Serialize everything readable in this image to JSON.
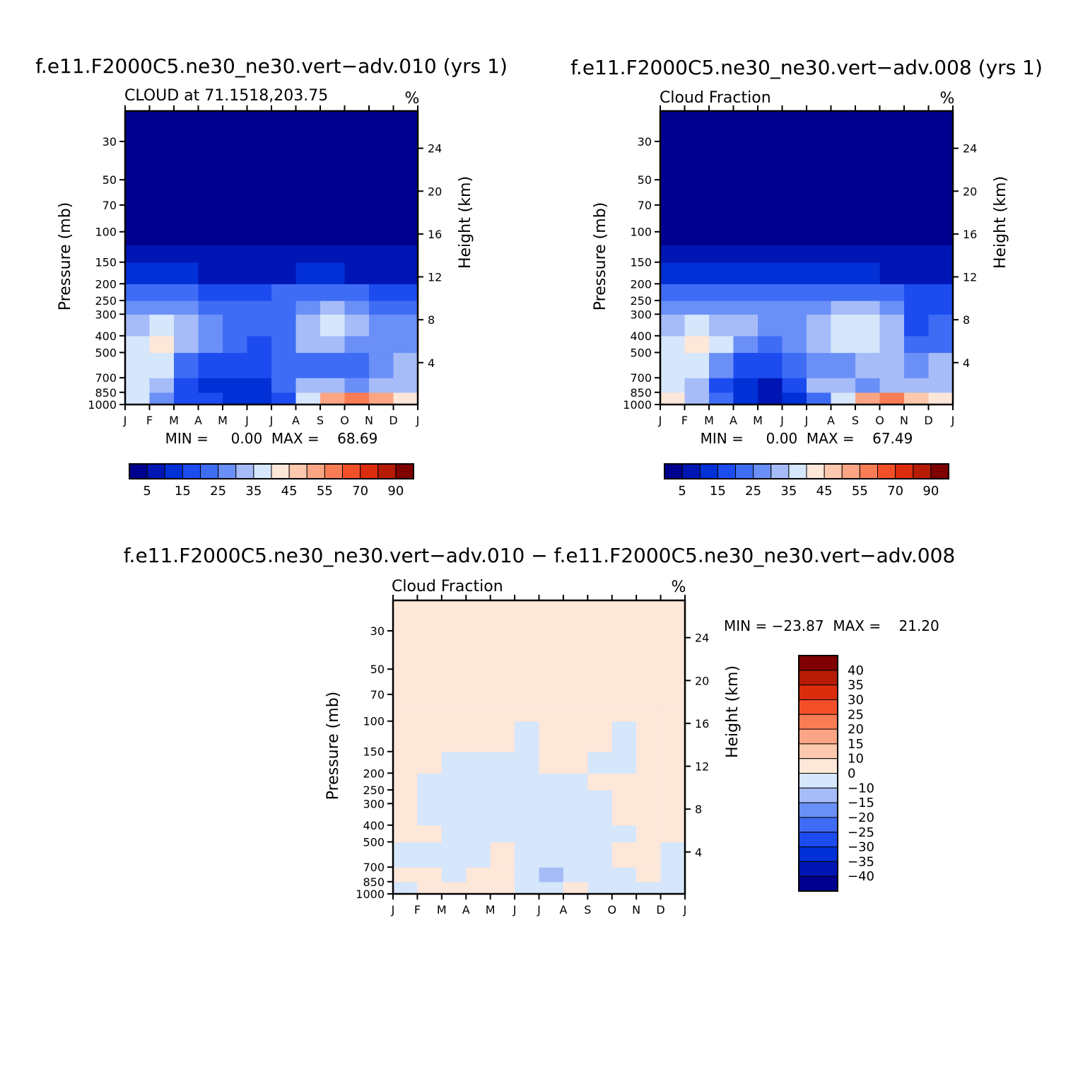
{
  "panels": [
    {
      "id": "p1",
      "title": "f.e11.F2000C5.ne30_ne30.vert−adv.010 (yrs 1)",
      "subtitle_left": "CLOUD at 71.1518,203.75",
      "units": "%",
      "ylabel": "Pressure (mb)",
      "y2label": "Height (km)",
      "stats": "MIN =     0.00  MAX =    68.69",
      "min": 0.0,
      "max": 68.69
    },
    {
      "id": "p2",
      "title": "f.e11.F2000C5.ne30_ne30.vert−adv.008 (yrs 1)",
      "subtitle_left": "Cloud Fraction",
      "units": "%",
      "ylabel": "Pressure (mb)",
      "y2label": "Height (km)",
      "stats": "MIN =     0.00  MAX =    67.49",
      "min": 0.0,
      "max": 67.49
    },
    {
      "id": "p3",
      "title": "f.e11.F2000C5.ne30_ne30.vert−adv.010 − f.e11.F2000C5.ne30_ne30.vert−adv.008",
      "subtitle_left": "Cloud Fraction",
      "units": "%",
      "ylabel": "Pressure (mb)",
      "y2label": "Height (km)",
      "stats": "MIN = −23.87  MAX =    21.20",
      "min": -23.87,
      "max": 21.2
    }
  ],
  "axes": {
    "months": [
      "J",
      "F",
      "M",
      "A",
      "M",
      "J",
      "J",
      "A",
      "S",
      "O",
      "N",
      "D",
      "J"
    ],
    "pressure_ticks": [
      30,
      50,
      70,
      100,
      150,
      200,
      250,
      300,
      400,
      500,
      700,
      850,
      1000
    ],
    "pressure_range": [
      20,
      1000
    ],
    "height_ticks": [
      24,
      20,
      16,
      12,
      8,
      4
    ]
  },
  "colorbars": {
    "top": {
      "labels": [
        "5",
        "15",
        "25",
        "35",
        "45",
        "55",
        "70",
        "90"
      ],
      "colors": [
        "#00008f",
        "#0016b4",
        "#0030d6",
        "#1c4cf0",
        "#3f6cf5",
        "#6a8ff7",
        "#a6bcf9",
        "#d6e6fb",
        "#fde7d9",
        "#fcc8ae",
        "#fba585",
        "#f97c55",
        "#f3502a",
        "#db2d0d",
        "#b51b05",
        "#7f0000"
      ]
    },
    "diff": {
      "labels": [
        "40",
        "35",
        "30",
        "25",
        "20",
        "15",
        "10",
        "0",
        "−10",
        "−15",
        "−20",
        "−25",
        "−30",
        "−35",
        "−40"
      ],
      "colors": [
        "#7f0000",
        "#b51b05",
        "#db2d0d",
        "#f3502a",
        "#f97c55",
        "#fba585",
        "#fcc8ae",
        "#fde7d9",
        "#d6e6fb",
        "#a6bcf9",
        "#6a8ff7",
        "#3f6cf5",
        "#1c4cf0",
        "#0030d6",
        "#0016b4",
        "#00008f"
      ]
    }
  },
  "chart_data": [
    {
      "type": "heatmap",
      "title": "CLOUD at 71.1518,203.75",
      "x": [
        "J",
        "F",
        "M",
        "A",
        "M",
        "J",
        "J",
        "A",
        "S",
        "O",
        "N",
        "D",
        "J"
      ],
      "y_pressure_mb": [
        1000,
        850,
        700,
        500,
        400,
        300,
        250,
        200,
        150
      ],
      "values_pct": [
        [
          40,
          38,
          20,
          15,
          15,
          5,
          15,
          20,
          50,
          55,
          60,
          45,
          40
        ],
        [
          38,
          40,
          25,
          10,
          15,
          8,
          20,
          25,
          35,
          25,
          30,
          30,
          38
        ],
        [
          35,
          42,
          30,
          15,
          20,
          15,
          20,
          22,
          25,
          22,
          25,
          25,
          35
        ],
        [
          30,
          45,
          35,
          30,
          25,
          15,
          20,
          25,
          35,
          30,
          25,
          25,
          30
        ],
        [
          30,
          38,
          35,
          32,
          25,
          20,
          22,
          25,
          38,
          32,
          28,
          25,
          30
        ],
        [
          25,
          30,
          28,
          25,
          22,
          20,
          22,
          25,
          30,
          30,
          25,
          20,
          25
        ],
        [
          20,
          22,
          22,
          20,
          18,
          18,
          18,
          22,
          25,
          22,
          20,
          15,
          20
        ],
        [
          10,
          12,
          10,
          10,
          8,
          8,
          8,
          10,
          12,
          10,
          8,
          8,
          10
        ],
        [
          5,
          5,
          5,
          5,
          5,
          5,
          5,
          5,
          5,
          5,
          5,
          5,
          5
        ]
      ],
      "zmin": 0.0,
      "zmax": 68.69,
      "units": "%"
    },
    {
      "type": "heatmap",
      "title": "Cloud Fraction",
      "x": [
        "J",
        "F",
        "M",
        "A",
        "M",
        "J",
        "J",
        "A",
        "S",
        "O",
        "N",
        "D",
        "J"
      ],
      "y_pressure_mb": [
        1000,
        850,
        700,
        500,
        400,
        300,
        250,
        200,
        150
      ],
      "values_pct": [
        [
          45,
          42,
          25,
          15,
          10,
          5,
          15,
          25,
          45,
          60,
          50,
          40,
          45
        ],
        [
          38,
          40,
          25,
          10,
          10,
          8,
          25,
          35,
          30,
          25,
          35,
          30,
          38
        ],
        [
          35,
          42,
          35,
          20,
          15,
          15,
          25,
          28,
          30,
          35,
          30,
          25,
          35
        ],
        [
          30,
          45,
          40,
          32,
          25,
          20,
          30,
          35,
          38,
          35,
          30,
          10,
          30
        ],
        [
          30,
          38,
          35,
          32,
          28,
          25,
          30,
          35,
          38,
          32,
          28,
          10,
          30
        ],
        [
          25,
          30,
          28,
          25,
          25,
          25,
          28,
          30,
          30,
          30,
          25,
          10,
          25
        ],
        [
          20,
          22,
          22,
          20,
          20,
          20,
          22,
          22,
          25,
          22,
          20,
          10,
          20
        ],
        [
          10,
          12,
          10,
          10,
          10,
          10,
          10,
          10,
          12,
          10,
          8,
          8,
          10
        ],
        [
          5,
          5,
          5,
          5,
          5,
          5,
          5,
          5,
          5,
          5,
          5,
          5,
          5
        ]
      ],
      "zmin": 0.0,
      "zmax": 67.49,
      "units": "%"
    },
    {
      "type": "heatmap",
      "title": "Cloud Fraction",
      "x": [
        "J",
        "F",
        "M",
        "A",
        "M",
        "J",
        "J",
        "A",
        "S",
        "O",
        "N",
        "D",
        "J"
      ],
      "y_pressure_mb": [
        1000,
        850,
        700,
        500,
        400,
        300,
        250,
        200,
        150,
        100
      ],
      "values_pct": [
        [
          -3,
          -3,
          5,
          -3,
          15,
          -3,
          -3,
          -3,
          5,
          -15,
          -3,
          -3,
          -3
        ],
        [
          -3,
          3,
          -3,
          -5,
          10,
          -3,
          -15,
          -10,
          -3,
          -5,
          3,
          -3,
          -3
        ],
        [
          -3,
          -3,
          -3,
          -10,
          3,
          -3,
          -10,
          -10,
          -3,
          -3,
          3,
          -3,
          -3
        ],
        [
          3,
          3,
          -3,
          -3,
          -3,
          -3,
          -10,
          -10,
          -3,
          -3,
          -3,
          3,
          -3
        ],
        [
          3,
          -3,
          -3,
          -3,
          -5,
          -3,
          -3,
          -10,
          -3,
          -3,
          3,
          5,
          -3
        ],
        [
          3,
          -3,
          -3,
          -3,
          -10,
          -5,
          -3,
          -3,
          -3,
          -3,
          3,
          10,
          -3
        ],
        [
          3,
          -3,
          -3,
          -3,
          -3,
          -3,
          -3,
          -3,
          -3,
          3,
          3,
          3,
          -3
        ],
        [
          3,
          3,
          -3,
          -3,
          -3,
          -3,
          -3,
          3,
          -3,
          -3,
          -3,
          3,
          3
        ],
        [
          3,
          3,
          -3,
          3,
          3,
          -3,
          -3,
          3,
          3,
          -3,
          -3,
          3,
          3
        ],
        [
          3,
          3,
          3,
          3,
          3,
          3,
          3,
          -3,
          3,
          3,
          3,
          3,
          3
        ]
      ],
      "zmin": -23.87,
      "zmax": 21.2,
      "units": "%"
    }
  ]
}
